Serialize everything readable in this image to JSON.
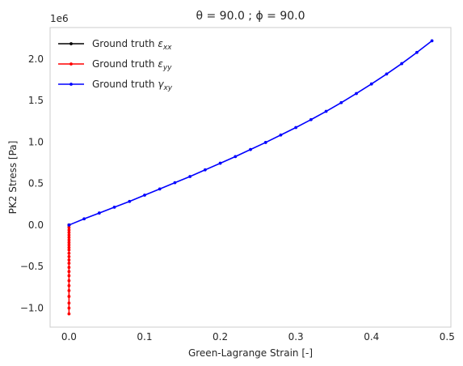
{
  "chart_data": {
    "type": "line",
    "title": "θ = 90.0 ; ϕ = 90.0",
    "xlabel": "Green-Lagrange Strain [-]",
    "ylabel": "PK2 Stress [Pa]",
    "y_offset_label": "1e6",
    "xlim": [
      -0.025,
      0.505
    ],
    "ylim": [
      -1.23,
      2.38
    ],
    "y_scale_factor": 1000000,
    "xticks": [
      0.0,
      0.1,
      0.2,
      0.3,
      0.4,
      0.5
    ],
    "xtick_labels": [
      "0.0",
      "0.1",
      "0.2",
      "0.3",
      "0.4",
      "0.5"
    ],
    "yticks": [
      -1.0,
      -0.5,
      0.0,
      0.5,
      1.0,
      1.5,
      2.0
    ],
    "ytick_labels": [
      "−1.0",
      "−0.5",
      "0.0",
      "0.5",
      "1.0",
      "1.5",
      "2.0"
    ],
    "grid": false,
    "legend_position": "top-left",
    "series": [
      {
        "name": "Ground truth εxx",
        "legend_main": "Ground truth ",
        "legend_sym": "ε",
        "legend_sub": "xx",
        "color": "#000000",
        "x": [
          0.0,
          0.0,
          0.0,
          0.0,
          0.0,
          0.0,
          0.0,
          0.0,
          0.0,
          0.0,
          0.0,
          0.0,
          0.0,
          0.0,
          0.0,
          0.0,
          0.0,
          0.0,
          0.0,
          0.0,
          0.0,
          0.0,
          0.0,
          0.0,
          0.0
        ],
        "y": [
          0.0,
          0.0,
          0.0,
          0.0,
          0.0,
          0.0,
          0.0,
          0.0,
          0.0,
          0.0,
          0.0,
          0.0,
          0.0,
          0.0,
          0.0,
          0.0,
          0.0,
          0.0,
          0.0,
          0.0,
          0.0,
          0.0,
          0.0,
          0.0,
          0.0
        ]
      },
      {
        "name": "Ground truth εyy",
        "legend_main": "Ground truth ",
        "legend_sym": "ε",
        "legend_sub": "yy",
        "color": "#ff0000",
        "x": [
          0.0,
          0.0,
          0.0,
          0.0,
          0.0,
          0.0,
          0.0,
          0.0,
          0.0,
          0.0,
          0.0,
          0.0,
          0.0,
          0.0,
          0.0,
          0.0,
          0.0,
          0.0,
          0.0,
          0.0,
          0.0,
          0.0,
          0.0,
          0.0,
          0.0
        ],
        "y": [
          0.0,
          -0.03,
          -0.06,
          -0.09,
          -0.12,
          -0.15,
          -0.18,
          -0.21,
          -0.24,
          -0.27,
          -0.3,
          -0.34,
          -0.38,
          -0.42,
          -0.46,
          -0.51,
          -0.56,
          -0.61,
          -0.67,
          -0.73,
          -0.79,
          -0.86,
          -0.94,
          -1.0,
          -1.07
        ]
      },
      {
        "name": "Ground truth γxy",
        "legend_main": "Ground truth ",
        "legend_sym": "γ",
        "legend_sub": "xy",
        "color": "#0000ff",
        "x": [
          0.0,
          0.02,
          0.04,
          0.06,
          0.08,
          0.1,
          0.12,
          0.14,
          0.16,
          0.18,
          0.2,
          0.22,
          0.24,
          0.26,
          0.28,
          0.3,
          0.32,
          0.34,
          0.36,
          0.38,
          0.4,
          0.42,
          0.44,
          0.46,
          0.48
        ],
        "y": [
          0.0,
          0.075,
          0.145,
          0.215,
          0.285,
          0.36,
          0.435,
          0.51,
          0.585,
          0.665,
          0.745,
          0.825,
          0.91,
          0.995,
          1.085,
          1.175,
          1.27,
          1.37,
          1.475,
          1.585,
          1.7,
          1.82,
          1.945,
          2.08,
          2.22
        ]
      }
    ]
  }
}
